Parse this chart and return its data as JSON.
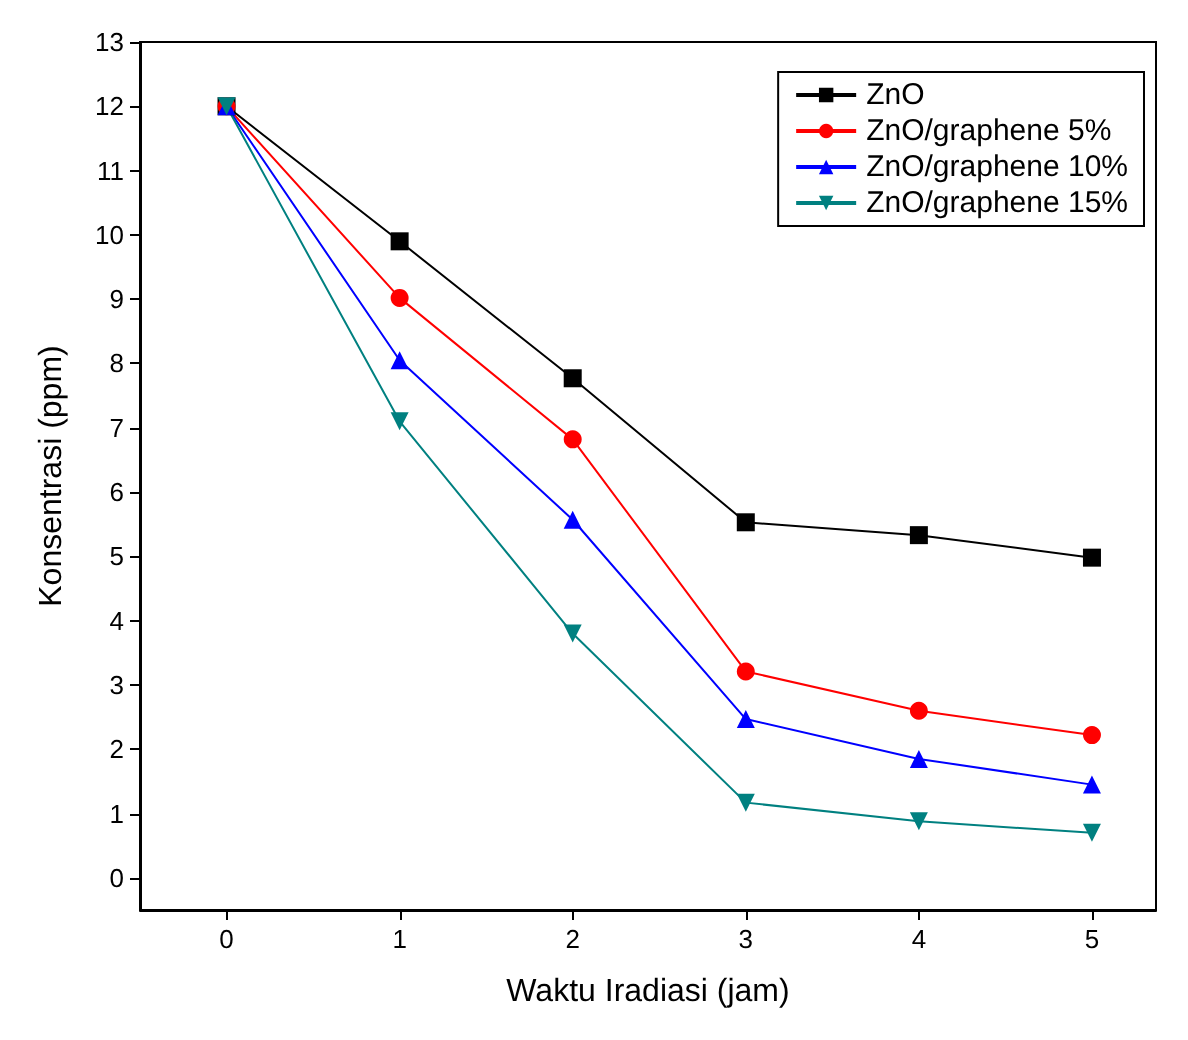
{
  "chart_data": {
    "type": "line",
    "xlabel": "Waktu Iradiasi (jam)",
    "ylabel": "Konsentrasi (ppm)",
    "x": [
      0,
      1,
      2,
      3,
      4,
      5
    ],
    "series": [
      {
        "name": "ZnO",
        "color": "#000000",
        "marker": "square",
        "values": [
          12,
          9.9,
          7.77,
          5.53,
          5.33,
          4.98
        ]
      },
      {
        "name": "ZnO/graphene 5%",
        "color": "#ff0000",
        "marker": "circle",
        "values": [
          12,
          9.02,
          6.82,
          3.21,
          2.6,
          2.22
        ]
      },
      {
        "name": "ZnO/graphene 10%",
        "color": "#0000ff",
        "marker": "triangle",
        "values": [
          12,
          8.05,
          5.57,
          2.47,
          1.85,
          1.45
        ]
      },
      {
        "name": "ZnO/graphene 15%",
        "color": "#008080",
        "marker": "triangle-down",
        "values": [
          12,
          7.1,
          3.8,
          1.17,
          0.88,
          0.7
        ]
      }
    ],
    "xlim": [
      -0.5,
      5.37
    ],
    "xticks": [
      0,
      1,
      2,
      3,
      4,
      5
    ],
    "ylim": [
      -0.5,
      13
    ],
    "yticks": [
      0,
      1,
      2,
      3,
      4,
      5,
      6,
      7,
      8,
      9,
      10,
      11,
      12,
      13
    ],
    "grid": false,
    "legend": "top right",
    "line_style": "solid"
  }
}
